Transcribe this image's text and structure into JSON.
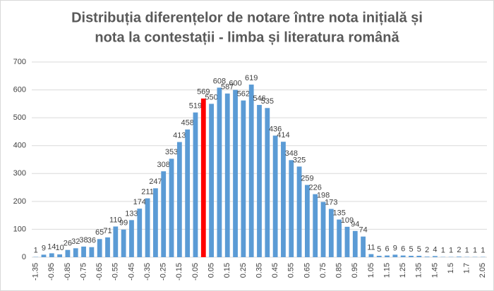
{
  "chart_data": {
    "type": "bar",
    "title": [
      "Distribuția diferențelor de notare între nota inițială și",
      "nota la contestații - limba și literatura română"
    ],
    "categories": [
      "-1.35",
      null,
      "-0.95",
      null,
      "-0.85",
      null,
      "-0.75",
      null,
      "-0.65",
      null,
      "-0.55",
      null,
      "-0.45",
      null,
      "-0.35",
      null,
      "-0.25",
      null,
      "-0.15",
      null,
      "-0.05",
      null,
      "0.05",
      null,
      "0.15",
      null,
      "0.25",
      null,
      "0.35",
      null,
      "0.45",
      null,
      "0.55",
      null,
      "0.65",
      null,
      "0.75",
      null,
      "0.85",
      null,
      "0.95",
      null,
      "1.05",
      null,
      "1.15",
      null,
      "1.25",
      null,
      "1.35",
      null,
      "1.45",
      null,
      "1.5",
      null,
      "1.7",
      null,
      "2.05"
    ],
    "values": [
      1,
      9,
      14,
      10,
      26,
      32,
      38,
      36,
      65,
      71,
      110,
      99,
      133,
      174,
      211,
      247,
      308,
      353,
      413,
      458,
      519,
      569,
      550,
      608,
      587,
      600,
      562,
      619,
      546,
      535,
      436,
      414,
      348,
      325,
      259,
      226,
      198,
      173,
      135,
      109,
      94,
      74,
      11,
      5,
      6,
      9,
      6,
      5,
      5,
      2,
      4,
      1,
      1,
      2,
      1,
      1,
      1
    ],
    "colors": [
      "#5b9bd5",
      "#5b9bd5",
      "#5b9bd5",
      "#5b9bd5",
      "#5b9bd5",
      "#5b9bd5",
      "#5b9bd5",
      "#5b9bd5",
      "#5b9bd5",
      "#5b9bd5",
      "#5b9bd5",
      "#5b9bd5",
      "#5b9bd5",
      "#5b9bd5",
      "#5b9bd5",
      "#5b9bd5",
      "#5b9bd5",
      "#5b9bd5",
      "#5b9bd5",
      "#5b9bd5",
      "#5b9bd5",
      "#ff0000",
      "#5b9bd5",
      "#5b9bd5",
      "#5b9bd5",
      "#5b9bd5",
      "#5b9bd5",
      "#5b9bd5",
      "#5b9bd5",
      "#5b9bd5",
      "#5b9bd5",
      "#5b9bd5",
      "#5b9bd5",
      "#5b9bd5",
      "#5b9bd5",
      "#5b9bd5",
      "#5b9bd5",
      "#5b9bd5",
      "#5b9bd5",
      "#5b9bd5",
      "#5b9bd5",
      "#5b9bd5",
      "#5b9bd5",
      "#5b9bd5",
      "#5b9bd5",
      "#5b9bd5",
      "#5b9bd5",
      "#5b9bd5",
      "#5b9bd5",
      "#5b9bd5",
      "#5b9bd5",
      "#5b9bd5",
      "#5b9bd5",
      "#5b9bd5",
      "#5b9bd5",
      "#5b9bd5",
      "#5b9bd5"
    ],
    "ylim": [
      0,
      700
    ],
    "yticks": [
      0,
      100,
      200,
      300,
      400,
      500,
      600,
      700
    ],
    "grid": true
  }
}
